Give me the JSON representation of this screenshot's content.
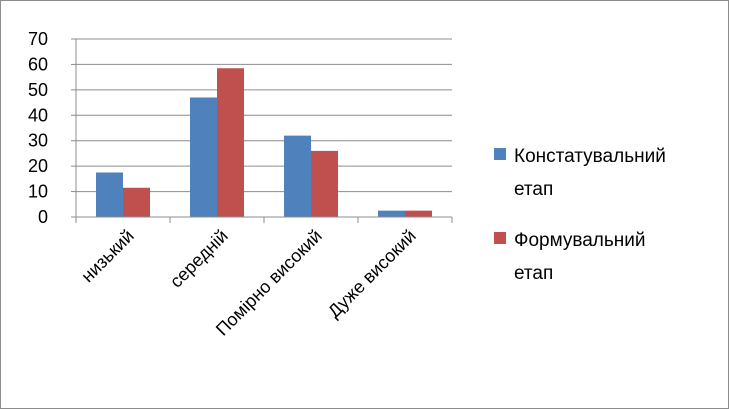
{
  "chart_data": {
    "type": "bar",
    "categories": [
      "низький",
      "середній",
      "Помірно високий",
      "Дуже високий"
    ],
    "series": [
      {
        "name": "Констатувальний етап",
        "values": [
          17.5,
          47,
          32,
          2.5
        ],
        "color": "#4f81bd"
      },
      {
        "name": "Формувальний етап",
        "values": [
          11.5,
          58.5,
          26,
          2.5
        ],
        "color": "#c0504d"
      }
    ],
    "ylim": [
      0,
      70
    ],
    "yticks": [
      0,
      10,
      20,
      30,
      40,
      50,
      60,
      70
    ],
    "grid": true,
    "legend_position": "right"
  }
}
